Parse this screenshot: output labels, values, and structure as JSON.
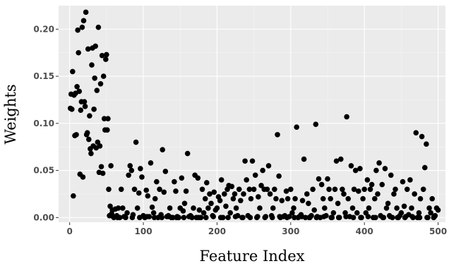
{
  "chart_data": {
    "type": "scatter",
    "xlabel": "Feature Index",
    "ylabel": "Weights",
    "xlim": [
      -15,
      510
    ],
    "ylim": [
      -0.005,
      0.225
    ],
    "xticks": [
      "0",
      "100",
      "200",
      "300",
      "400",
      "500"
    ],
    "yticks": [
      "0.00",
      "0.05",
      "0.10",
      "0.15",
      "0.20"
    ],
    "grid": true,
    "marker_color": "#000000",
    "panel_color": "#ebebeb",
    "points": [
      [
        1,
        0.116
      ],
      [
        2,
        0.131
      ],
      [
        3,
        0.115
      ],
      [
        4,
        0.155
      ],
      [
        5,
        0.023
      ],
      [
        6,
        0.13
      ],
      [
        7,
        0.087
      ],
      [
        8,
        0.132
      ],
      [
        9,
        0.088
      ],
      [
        10,
        0.139
      ],
      [
        11,
        0.199
      ],
      [
        12,
        0.175
      ],
      [
        13,
        0.134
      ],
      [
        14,
        0.046
      ],
      [
        15,
        0.114
      ],
      [
        16,
        0.123
      ],
      [
        17,
        0.202
      ],
      [
        18,
        0.043
      ],
      [
        19,
        0.209
      ],
      [
        20,
        0.123
      ],
      [
        21,
        0.118
      ],
      [
        22,
        0.218
      ],
      [
        23,
        0.088
      ],
      [
        24,
        0.09
      ],
      [
        25,
        0.179
      ],
      [
        26,
        0.083
      ],
      [
        27,
        0.108
      ],
      [
        28,
        0.073
      ],
      [
        29,
        0.068
      ],
      [
        30,
        0.162
      ],
      [
        31,
        0.18
      ],
      [
        32,
        0.076
      ],
      [
        33,
        0.115
      ],
      [
        34,
        0.148
      ],
      [
        35,
        0.182
      ],
      [
        36,
        0.074
      ],
      [
        37,
        0.135
      ],
      [
        38,
        0.08
      ],
      [
        39,
        0.202
      ],
      [
        40,
        0.048
      ],
      [
        41,
        0.076
      ],
      [
        42,
        0.142
      ],
      [
        43,
        0.054
      ],
      [
        44,
        0.172
      ],
      [
        45,
        0.047
      ],
      [
        46,
        0.15
      ],
      [
        47,
        0.105
      ],
      [
        48,
        0.093
      ],
      [
        49,
        0.168
      ],
      [
        50,
        0.173
      ],
      [
        51,
        0.093
      ],
      [
        52,
        0.105
      ],
      [
        53,
        0.03
      ],
      [
        54,
        0.002
      ],
      [
        55,
        0.012
      ],
      [
        56,
        0.055
      ],
      [
        57,
        0.004
      ],
      [
        58,
        0.008
      ],
      [
        59,
        0.001
      ],
      [
        60,
        0.0
      ],
      [
        62,
        0.009
      ],
      [
        64,
        0.002
      ],
      [
        66,
        0.01
      ],
      [
        68,
        0.0
      ],
      [
        70,
        0.03
      ],
      [
        72,
        0.01
      ],
      [
        74,
        0.001
      ],
      [
        76,
        0.0
      ],
      [
        78,
        0.005
      ],
      [
        80,
        0.045
      ],
      [
        82,
        0.055
      ],
      [
        84,
        0.05
      ],
      [
        86,
        0.003
      ],
      [
        88,
        0.03
      ],
      [
        90,
        0.08
      ],
      [
        92,
        0.01
      ],
      [
        94,
        0.026
      ],
      [
        96,
        0.052
      ],
      [
        98,
        0.043
      ],
      [
        100,
        0.002
      ],
      [
        102,
        0.0
      ],
      [
        104,
        0.029
      ],
      [
        106,
        0.023
      ],
      [
        108,
        0.001
      ],
      [
        110,
        0.058
      ],
      [
        112,
        0.011
      ],
      [
        114,
        0.005
      ],
      [
        116,
        0.02
      ],
      [
        118,
        0.038
      ],
      [
        120,
        0.0
      ],
      [
        122,
        0.03
      ],
      [
        124,
        0.003
      ],
      [
        126,
        0.072
      ],
      [
        128,
        0.027
      ],
      [
        130,
        0.049
      ],
      [
        132,
        0.001
      ],
      [
        134,
        0.002
      ],
      [
        136,
        0.01
      ],
      [
        138,
        0.0
      ],
      [
        140,
        0.0
      ],
      [
        142,
        0.038
      ],
      [
        144,
        0.028
      ],
      [
        146,
        0.001
      ],
      [
        148,
        0.0
      ],
      [
        150,
        0.01
      ],
      [
        152,
        0.042
      ],
      [
        154,
        0.007
      ],
      [
        156,
        0.015
      ],
      [
        158,
        0.028
      ],
      [
        160,
        0.068
      ],
      [
        162,
        0.001
      ],
      [
        164,
        0.002
      ],
      [
        166,
        0.0
      ],
      [
        168,
        0.01
      ],
      [
        170,
        0.045
      ],
      [
        172,
        0.0
      ],
      [
        174,
        0.042
      ],
      [
        176,
        0.008
      ],
      [
        178,
        0.0
      ],
      [
        180,
        0.03
      ],
      [
        182,
        0.005
      ],
      [
        184,
        0.02
      ],
      [
        186,
        0.037
      ],
      [
        188,
        0.01
      ],
      [
        190,
        0.025
      ],
      [
        192,
        0.015
      ],
      [
        194,
        0.002
      ],
      [
        196,
        0.027
      ],
      [
        198,
        0.008
      ],
      [
        200,
        0.01
      ],
      [
        202,
        0.022
      ],
      [
        204,
        0.018
      ],
      [
        206,
        0.04
      ],
      [
        208,
        0.0
      ],
      [
        210,
        0.025
      ],
      [
        212,
        0.012
      ],
      [
        214,
        0.03
      ],
      [
        216,
        0.034
      ],
      [
        218,
        0.005
      ],
      [
        220,
        0.033
      ],
      [
        222,
        0.02
      ],
      [
        224,
        0.025
      ],
      [
        226,
        0.01
      ],
      [
        228,
        0.002
      ],
      [
        230,
        0.03
      ],
      [
        232,
        0.018
      ],
      [
        234,
        0.0
      ],
      [
        236,
        0.025
      ],
      [
        238,
        0.06
      ],
      [
        240,
        0.04
      ],
      [
        242,
        0.002
      ],
      [
        244,
        0.03
      ],
      [
        246,
        0.02
      ],
      [
        248,
        0.06
      ],
      [
        250,
        0.03
      ],
      [
        252,
        0.045
      ],
      [
        254,
        0.0
      ],
      [
        256,
        0.022
      ],
      [
        258,
        0.01
      ],
      [
        260,
        0.034
      ],
      [
        262,
        0.05
      ],
      [
        264,
        0.03
      ],
      [
        266,
        0.001
      ],
      [
        268,
        0.03
      ],
      [
        270,
        0.055
      ],
      [
        272,
        0.025
      ],
      [
        274,
        0.002
      ],
      [
        276,
        0.01
      ],
      [
        278,
        0.03
      ],
      [
        280,
        0.02
      ],
      [
        282,
        0.088
      ],
      [
        284,
        0.044
      ],
      [
        286,
        0.0
      ],
      [
        288,
        0.018
      ],
      [
        290,
        0.001
      ],
      [
        292,
        0.002
      ],
      [
        294,
        0.028
      ],
      [
        296,
        0.02
      ],
      [
        298,
        0.001
      ],
      [
        300,
        0.03
      ],
      [
        302,
        0.005
      ],
      [
        304,
        0.01
      ],
      [
        306,
        0.02
      ],
      [
        308,
        0.096
      ],
      [
        310,
        0.0
      ],
      [
        312,
        0.001
      ],
      [
        314,
        0.003
      ],
      [
        316,
        0.018
      ],
      [
        318,
        0.062
      ],
      [
        320,
        0.0
      ],
      [
        322,
        0.025
      ],
      [
        324,
        0.015
      ],
      [
        326,
        0.0
      ],
      [
        328,
        0.002
      ],
      [
        330,
        0.03
      ],
      [
        332,
        0.008
      ],
      [
        334,
        0.099
      ],
      [
        336,
        0.001
      ],
      [
        338,
        0.041
      ],
      [
        340,
        0.0
      ],
      [
        342,
        0.035
      ],
      [
        344,
        0.02
      ],
      [
        346,
        0.01
      ],
      [
        348,
        0.002
      ],
      [
        350,
        0.041
      ],
      [
        352,
        0.03
      ],
      [
        354,
        0.02
      ],
      [
        356,
        0.0
      ],
      [
        358,
        0.005
      ],
      [
        360,
        0.03
      ],
      [
        362,
        0.06
      ],
      [
        364,
        0.015
      ],
      [
        366,
        0.0
      ],
      [
        368,
        0.062
      ],
      [
        370,
        0.03
      ],
      [
        372,
        0.025
      ],
      [
        374,
        0.005
      ],
      [
        376,
        0.107
      ],
      [
        378,
        0.02
      ],
      [
        380,
        0.001
      ],
      [
        382,
        0.055
      ],
      [
        384,
        0.01
      ],
      [
        386,
        0.03
      ],
      [
        388,
        0.05
      ],
      [
        390,
        0.005
      ],
      [
        392,
        0.028
      ],
      [
        394,
        0.052
      ],
      [
        396,
        0.0
      ],
      [
        398,
        0.02
      ],
      [
        400,
        0.03
      ],
      [
        402,
        0.005
      ],
      [
        404,
        0.04
      ],
      [
        406,
        0.01
      ],
      [
        408,
        0.03
      ],
      [
        410,
        0.035
      ],
      [
        412,
        0.0
      ],
      [
        414,
        0.02
      ],
      [
        416,
        0.05
      ],
      [
        418,
        0.025
      ],
      [
        420,
        0.058
      ],
      [
        422,
        0.002
      ],
      [
        424,
        0.035
      ],
      [
        426,
        0.0
      ],
      [
        428,
        0.052
      ],
      [
        430,
        0.01
      ],
      [
        432,
        0.015
      ],
      [
        434,
        0.002
      ],
      [
        436,
        0.045
      ],
      [
        438,
        0.0
      ],
      [
        440,
        0.025
      ],
      [
        442,
        0.03
      ],
      [
        444,
        0.01
      ],
      [
        446,
        0.0
      ],
      [
        448,
        0.002
      ],
      [
        450,
        0.005
      ],
      [
        452,
        0.038
      ],
      [
        454,
        0.012
      ],
      [
        456,
        0.001
      ],
      [
        458,
        0.03
      ],
      [
        460,
        0.003
      ],
      [
        462,
        0.04
      ],
      [
        464,
        0.01
      ],
      [
        466,
        0.0
      ],
      [
        468,
        0.025
      ],
      [
        470,
        0.09
      ],
      [
        472,
        0.0
      ],
      [
        474,
        0.005
      ],
      [
        476,
        0.02
      ],
      [
        478,
        0.086
      ],
      [
        480,
        0.03
      ],
      [
        482,
        0.053
      ],
      [
        484,
        0.078
      ],
      [
        486,
        0.0
      ],
      [
        488,
        0.01
      ],
      [
        490,
        0.005
      ],
      [
        492,
        0.02
      ],
      [
        494,
        0.0
      ],
      [
        496,
        0.002
      ],
      [
        498,
        0.01
      ],
      [
        500,
        0.008
      ],
      [
        65,
        0.0
      ],
      [
        75,
        0.001
      ],
      [
        85,
        0.0
      ],
      [
        95,
        0.0
      ],
      [
        105,
        0.001
      ],
      [
        115,
        0.0
      ],
      [
        125,
        0.0
      ],
      [
        135,
        0.001
      ],
      [
        145,
        0.0
      ],
      [
        155,
        0.0
      ],
      [
        165,
        0.001
      ],
      [
        175,
        0.0
      ],
      [
        185,
        0.0
      ],
      [
        195,
        0.001
      ],
      [
        205,
        0.0
      ],
      [
        215,
        0.0
      ],
      [
        225,
        0.001
      ],
      [
        235,
        0.0
      ],
      [
        245,
        0.0
      ],
      [
        255,
        0.001
      ],
      [
        265,
        0.0
      ],
      [
        275,
        0.0
      ],
      [
        285,
        0.001
      ],
      [
        295,
        0.0
      ],
      [
        305,
        0.0
      ],
      [
        315,
        0.001
      ],
      [
        325,
        0.0
      ],
      [
        335,
        0.0
      ],
      [
        345,
        0.001
      ],
      [
        355,
        0.0
      ],
      [
        365,
        0.0
      ],
      [
        375,
        0.001
      ],
      [
        385,
        0.0
      ],
      [
        395,
        0.0
      ],
      [
        405,
        0.001
      ],
      [
        415,
        0.0
      ],
      [
        425,
        0.0
      ],
      [
        435,
        0.001
      ],
      [
        445,
        0.0
      ],
      [
        455,
        0.0
      ],
      [
        465,
        0.001
      ],
      [
        475,
        0.0
      ],
      [
        485,
        0.0
      ],
      [
        495,
        0.001
      ]
    ]
  }
}
